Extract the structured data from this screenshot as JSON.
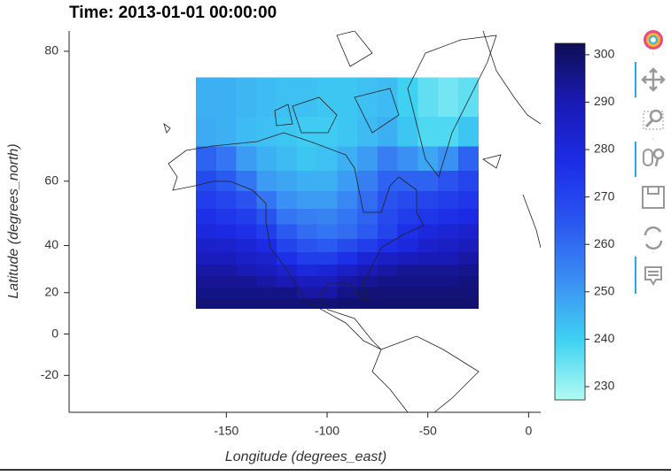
{
  "chart_data": {
    "type": "heatmap",
    "title": "Time: 2013-01-01 00:00:00",
    "x_label": "Longitude (degrees_east)",
    "y_label": "Latitude (degrees_north)",
    "projection": "mercator",
    "xlim": [
      -228,
      6
    ],
    "ylim": [
      -36,
      81.6
    ],
    "xticks": [
      -150,
      -100,
      -50,
      0
    ],
    "yticks": [
      -20,
      0,
      20,
      40,
      60,
      80
    ],
    "x": [
      -160,
      -150,
      -140,
      -130,
      -120,
      -110,
      -100,
      -90,
      -80,
      -70,
      -60,
      -50,
      -40,
      -30
    ],
    "y": [
      75,
      70,
      65,
      60,
      55,
      50,
      45,
      40,
      35,
      30,
      25,
      20,
      15
    ],
    "z": [
      [
        246,
        246,
        245,
        244,
        243,
        243,
        242,
        242,
        243,
        244,
        240,
        236,
        234,
        236
      ],
      [
        247,
        246,
        244,
        243,
        242,
        241,
        241,
        242,
        244,
        246,
        242,
        238,
        238,
        242
      ],
      [
        262,
        258,
        250,
        246,
        244,
        242,
        243,
        246,
        250,
        256,
        252,
        248,
        252,
        262
      ],
      [
        268,
        264,
        258,
        250,
        248,
        246,
        246,
        250,
        256,
        262,
        262,
        262,
        266,
        270
      ],
      [
        272,
        270,
        266,
        258,
        252,
        250,
        250,
        254,
        260,
        266,
        268,
        270,
        272,
        274
      ],
      [
        276,
        274,
        272,
        266,
        258,
        256,
        255,
        258,
        262,
        268,
        272,
        274,
        276,
        278
      ],
      [
        280,
        278,
        276,
        272,
        264,
        260,
        258,
        260,
        264,
        270,
        276,
        280,
        282,
        284
      ],
      [
        284,
        284,
        282,
        278,
        270,
        266,
        264,
        268,
        272,
        276,
        280,
        284,
        286,
        288
      ],
      [
        288,
        288,
        286,
        284,
        276,
        272,
        272,
        276,
        282,
        286,
        288,
        290,
        290,
        292
      ],
      [
        292,
        292,
        290,
        288,
        284,
        280,
        282,
        286,
        290,
        292,
        294,
        294,
        294,
        295
      ],
      [
        294,
        294,
        294,
        292,
        290,
        288,
        288,
        292,
        294,
        296,
        296,
        296,
        296,
        297
      ],
      [
        296,
        296,
        296,
        296,
        296,
        292,
        292,
        296,
        298,
        298,
        298,
        298,
        298,
        298
      ],
      [
        298,
        298,
        298,
        298,
        298,
        298,
        298,
        299,
        299,
        299,
        299,
        299,
        299,
        299
      ]
    ],
    "clim": [
      227.2,
      302.4
    ],
    "cticks": [
      230,
      240,
      250,
      260,
      270,
      280,
      290,
      300
    ],
    "colormap": [
      "#b2fbf2",
      "#3fd2f2",
      "#3b8ff3",
      "#2a56f0",
      "#1c2ce6",
      "#1a1ab5",
      "#0e0e55"
    ]
  }
}
